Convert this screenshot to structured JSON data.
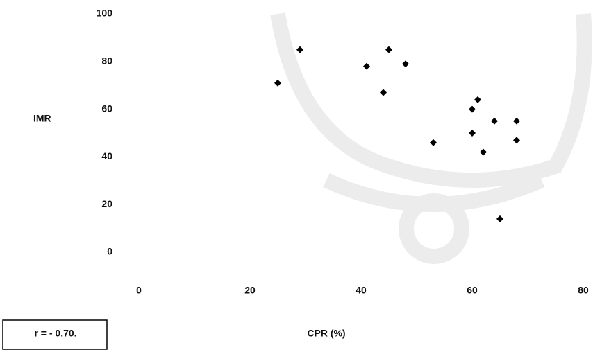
{
  "chart_data": {
    "type": "scatter",
    "x_label": "CPR (%)",
    "y_label": "IMR",
    "annotation": "r = - 0.70.",
    "color": "#000000",
    "series": [
      {
        "x": [
          25,
          29,
          41,
          45,
          48,
          44,
          61,
          60,
          64,
          68,
          60,
          53,
          68,
          62,
          65
        ],
        "values": [
          71,
          85,
          78,
          85,
          79,
          67,
          64,
          60,
          55,
          55,
          50,
          46,
          47,
          42,
          14
        ]
      }
    ],
    "xlim": [
      0,
      80
    ],
    "xticks": [
      0,
      20,
      40,
      60,
      80
    ],
    "ylim": [
      0,
      100
    ],
    "yticks": [
      0,
      20,
      40,
      60,
      80,
      100
    ]
  }
}
